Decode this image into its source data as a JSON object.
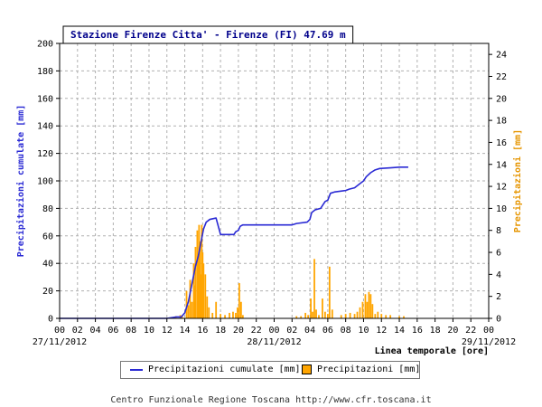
{
  "chart_data": {
    "type": "bar+line",
    "title": "Stazione Firenze Citta' - Firenze (FI) 47.69 m",
    "ylabel_left": "Precipitazioni cumulate [mm]",
    "ylabel_right": "Precipitazioni [mm]",
    "xlabel": "Linea temporale [ore]",
    "ylim_left": [
      0,
      200
    ],
    "ylim_right": [
      0,
      25
    ],
    "left_ticks": [
      0,
      20,
      40,
      60,
      80,
      100,
      120,
      140,
      160,
      180,
      200
    ],
    "right_ticks": [
      0,
      2,
      4,
      6,
      8,
      10,
      12,
      14,
      16,
      18,
      20,
      22,
      24
    ],
    "xlim_hours": [
      0,
      48
    ],
    "x_ticks": [
      {
        "h": 0,
        "label": "00"
      },
      {
        "h": 2,
        "label": "02"
      },
      {
        "h": 4,
        "label": "04"
      },
      {
        "h": 6,
        "label": "06"
      },
      {
        "h": 8,
        "label": "08"
      },
      {
        "h": 10,
        "label": "10"
      },
      {
        "h": 12,
        "label": "12"
      },
      {
        "h": 14,
        "label": "14"
      },
      {
        "h": 16,
        "label": "16"
      },
      {
        "h": 18,
        "label": "18"
      },
      {
        "h": 20,
        "label": "20"
      },
      {
        "h": 22,
        "label": "22"
      },
      {
        "h": 24,
        "label": "00"
      },
      {
        "h": 26,
        "label": "02"
      },
      {
        "h": 28,
        "label": "04"
      },
      {
        "h": 30,
        "label": "06"
      },
      {
        "h": 32,
        "label": "08"
      },
      {
        "h": 34,
        "label": "10"
      },
      {
        "h": 36,
        "label": "12"
      },
      {
        "h": 38,
        "label": "14"
      },
      {
        "h": 40,
        "label": "16"
      },
      {
        "h": 42,
        "label": "18"
      },
      {
        "h": 44,
        "label": "20"
      },
      {
        "h": 46,
        "label": "22"
      },
      {
        "h": 48,
        "label": "00"
      }
    ],
    "date_labels": [
      {
        "h": 0,
        "label": "27/11/2012"
      },
      {
        "h": 24,
        "label": "28/11/2012"
      },
      {
        "h": 48,
        "label": "29/11/2012"
      }
    ],
    "grid": true,
    "series": [
      {
        "name": "Precipitazioni cumulate [mm]",
        "kind": "line",
        "axis": "left",
        "color": "#2a2ad4",
        "points": [
          [
            0,
            0
          ],
          [
            12,
            0
          ],
          [
            13,
            1
          ],
          [
            13.6,
            1
          ],
          [
            14.0,
            4
          ],
          [
            14.4,
            12
          ],
          [
            14.8,
            25
          ],
          [
            15.2,
            38
          ],
          [
            15.5,
            45
          ],
          [
            15.8,
            55
          ],
          [
            16.1,
            65
          ],
          [
            16.4,
            70
          ],
          [
            16.8,
            72
          ],
          [
            17.5,
            73
          ],
          [
            18.0,
            61
          ],
          [
            19.5,
            61
          ],
          [
            19.7,
            63
          ],
          [
            20.0,
            64
          ],
          [
            20.2,
            67
          ],
          [
            20.5,
            68
          ],
          [
            26.0,
            68
          ],
          [
            26.5,
            69
          ],
          [
            27.7,
            70
          ],
          [
            28.0,
            72
          ],
          [
            28.2,
            77
          ],
          [
            28.6,
            79
          ],
          [
            29.2,
            80
          ],
          [
            29.4,
            82
          ],
          [
            29.7,
            85
          ],
          [
            30.0,
            86
          ],
          [
            30.3,
            91
          ],
          [
            30.8,
            92
          ],
          [
            32.0,
            93
          ],
          [
            32.4,
            94
          ],
          [
            33.0,
            95
          ],
          [
            33.6,
            98
          ],
          [
            34.0,
            100
          ],
          [
            34.3,
            103
          ],
          [
            34.8,
            106
          ],
          [
            35.3,
            108
          ],
          [
            35.8,
            109
          ],
          [
            37.0,
            109.5
          ],
          [
            38.0,
            110
          ],
          [
            39.0,
            110
          ]
        ]
      },
      {
        "name": "Precipitazioni [mm]",
        "kind": "bar",
        "axis": "right",
        "color": "#ffa500",
        "bar_width_hours": 0.18,
        "points": [
          [
            12.5,
            0.1
          ],
          [
            13.0,
            0.2
          ],
          [
            13.5,
            0.3
          ],
          [
            13.7,
            0.2
          ],
          [
            14.2,
            2.5
          ],
          [
            14.4,
            1.2
          ],
          [
            14.6,
            3.5
          ],
          [
            14.8,
            1.5
          ],
          [
            15.0,
            5.0
          ],
          [
            15.1,
            3.0
          ],
          [
            15.2,
            6.5
          ],
          [
            15.4,
            8.0
          ],
          [
            15.5,
            5.5
          ],
          [
            15.6,
            8.5
          ],
          [
            15.7,
            7.0
          ],
          [
            15.8,
            4.0
          ],
          [
            15.9,
            8.5
          ],
          [
            16.0,
            6.0
          ],
          [
            16.1,
            5.0
          ],
          [
            16.3,
            4.0
          ],
          [
            16.5,
            2.0
          ],
          [
            16.7,
            1.0
          ],
          [
            17.1,
            0.5
          ],
          [
            17.5,
            1.5
          ],
          [
            18.0,
            0.4
          ],
          [
            18.5,
            0.3
          ],
          [
            19.0,
            0.5
          ],
          [
            19.4,
            0.6
          ],
          [
            19.7,
            0.5
          ],
          [
            19.9,
            1.0
          ],
          [
            20.1,
            3.2
          ],
          [
            20.3,
            1.5
          ],
          [
            20.5,
            0.3
          ],
          [
            26.5,
            0.2
          ],
          [
            27.0,
            0.2
          ],
          [
            27.5,
            0.5
          ],
          [
            27.8,
            0.3
          ],
          [
            28.1,
            1.8
          ],
          [
            28.3,
            0.6
          ],
          [
            28.5,
            5.4
          ],
          [
            28.7,
            0.8
          ],
          [
            29.0,
            0.3
          ],
          [
            29.4,
            1.8
          ],
          [
            29.7,
            0.6
          ],
          [
            30.0,
            0.4
          ],
          [
            30.2,
            4.7
          ],
          [
            30.5,
            0.8
          ],
          [
            31.5,
            0.3
          ],
          [
            32.0,
            0.4
          ],
          [
            32.5,
            0.5
          ],
          [
            33.0,
            0.4
          ],
          [
            33.3,
            0.6
          ],
          [
            33.6,
            1.0
          ],
          [
            33.9,
            1.5
          ],
          [
            34.2,
            2.2
          ],
          [
            34.4,
            1.5
          ],
          [
            34.6,
            2.4
          ],
          [
            34.8,
            2.2
          ],
          [
            35.0,
            1.3
          ],
          [
            35.3,
            0.4
          ],
          [
            35.6,
            0.6
          ],
          [
            36.0,
            0.4
          ],
          [
            36.5,
            0.3
          ],
          [
            37.0,
            0.3
          ],
          [
            38.0,
            0.2
          ],
          [
            38.5,
            0.2
          ]
        ]
      }
    ]
  },
  "legend": {
    "line_label": "Precipitazioni cumulate [mm]",
    "bar_label": "Precipitazioni [mm]"
  },
  "footer": "Centro Funzionale Regione Toscana http://www.cfr.toscana.it",
  "colors": {
    "title_color": "#00008b",
    "left_axis_color": "#2a2ad4",
    "right_axis_color": "#e69500",
    "grid_color": "#b0b0b0"
  }
}
